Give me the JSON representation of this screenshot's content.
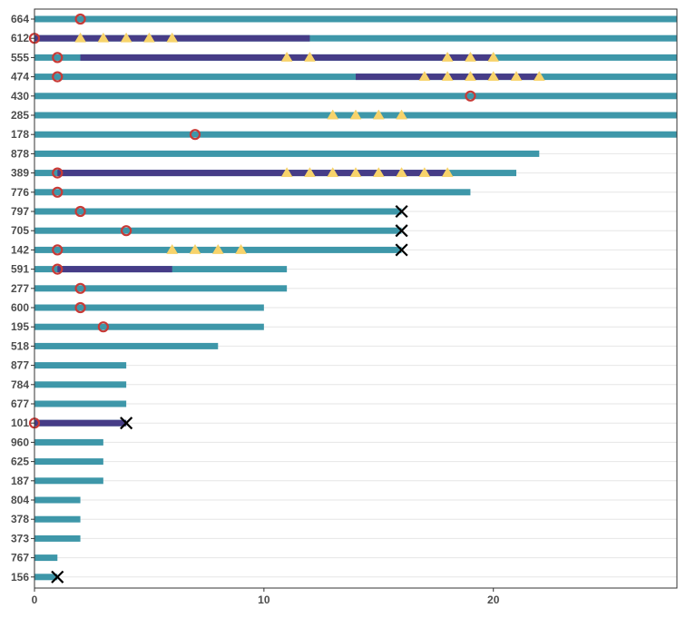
{
  "chart_data": {
    "type": "swimmer",
    "title": "",
    "xlabel": "",
    "ylabel": "",
    "xlim": [
      0,
      28
    ],
    "xticks": [
      0,
      10,
      20
    ],
    "grid": "horizontal",
    "colors": {
      "bar": "#3e97a9",
      "overlay": "#463c87",
      "circle": "#c83a36",
      "triangle": "#f7d36b",
      "cross": "#000000",
      "grid": "#e6e6e6",
      "frame": "#333333",
      "tick_text": "#4d4d4d"
    },
    "subjects": [
      {
        "id": "664",
        "end": 28,
        "overlay": null,
        "circle": 2,
        "triangles": [],
        "cross": null
      },
      {
        "id": "612",
        "end": 28,
        "overlay": [
          0,
          12
        ],
        "circle": 0,
        "triangles": [
          2,
          3,
          4,
          5,
          6
        ],
        "cross": null
      },
      {
        "id": "555",
        "end": 28,
        "overlay": [
          2,
          20
        ],
        "circle": 1,
        "triangles": [
          11,
          12,
          18,
          19,
          20
        ],
        "cross": null
      },
      {
        "id": "474",
        "end": 28,
        "overlay": [
          14,
          22
        ],
        "circle": 1,
        "triangles": [
          17,
          18,
          19,
          20,
          21,
          22
        ],
        "cross": null
      },
      {
        "id": "430",
        "end": 28,
        "overlay": null,
        "circle": 19,
        "triangles": [],
        "cross": null
      },
      {
        "id": "285",
        "end": 28,
        "overlay": null,
        "circle": null,
        "triangles": [
          13,
          14,
          15,
          16
        ],
        "cross": null
      },
      {
        "id": "178",
        "end": 28,
        "overlay": null,
        "circle": 7,
        "triangles": [],
        "cross": null
      },
      {
        "id": "878",
        "end": 22,
        "overlay": null,
        "circle": null,
        "triangles": [],
        "cross": null
      },
      {
        "id": "389",
        "end": 21,
        "overlay": [
          1,
          18
        ],
        "circle": 1,
        "triangles": [
          11,
          12,
          13,
          14,
          15,
          16,
          17,
          18
        ],
        "cross": null
      },
      {
        "id": "776",
        "end": 19,
        "overlay": null,
        "circle": 1,
        "triangles": [],
        "cross": null
      },
      {
        "id": "797",
        "end": 16,
        "overlay": null,
        "circle": 2,
        "triangles": [],
        "cross": 16
      },
      {
        "id": "705",
        "end": 16,
        "overlay": null,
        "circle": 4,
        "triangles": [],
        "cross": 16
      },
      {
        "id": "142",
        "end": 16,
        "overlay": null,
        "circle": 1,
        "triangles": [
          6,
          7,
          8,
          9
        ],
        "cross": 16
      },
      {
        "id": "591",
        "end": 11,
        "overlay": [
          1,
          6
        ],
        "circle": 1,
        "triangles": [],
        "cross": null
      },
      {
        "id": "277",
        "end": 11,
        "overlay": null,
        "circle": 2,
        "triangles": [],
        "cross": null
      },
      {
        "id": "600",
        "end": 10,
        "overlay": null,
        "circle": 2,
        "triangles": [],
        "cross": null
      },
      {
        "id": "195",
        "end": 10,
        "overlay": null,
        "circle": 3,
        "triangles": [],
        "cross": null
      },
      {
        "id": "518",
        "end": 8,
        "overlay": null,
        "circle": null,
        "triangles": [],
        "cross": null
      },
      {
        "id": "877",
        "end": 4,
        "overlay": null,
        "circle": null,
        "triangles": [],
        "cross": null
      },
      {
        "id": "784",
        "end": 4,
        "overlay": null,
        "circle": null,
        "triangles": [],
        "cross": null
      },
      {
        "id": "677",
        "end": 4,
        "overlay": null,
        "circle": null,
        "triangles": [],
        "cross": null
      },
      {
        "id": "101",
        "end": 4,
        "overlay": [
          0,
          4
        ],
        "circle": 0,
        "triangles": [],
        "cross": 4
      },
      {
        "id": "960",
        "end": 3,
        "overlay": null,
        "circle": null,
        "triangles": [],
        "cross": null
      },
      {
        "id": "625",
        "end": 3,
        "overlay": null,
        "circle": null,
        "triangles": [],
        "cross": null
      },
      {
        "id": "187",
        "end": 3,
        "overlay": null,
        "circle": null,
        "triangles": [],
        "cross": null
      },
      {
        "id": "804",
        "end": 2,
        "overlay": null,
        "circle": null,
        "triangles": [],
        "cross": null
      },
      {
        "id": "378",
        "end": 2,
        "overlay": null,
        "circle": null,
        "triangles": [],
        "cross": null
      },
      {
        "id": "373",
        "end": 2,
        "overlay": null,
        "circle": null,
        "triangles": [],
        "cross": null
      },
      {
        "id": "767",
        "end": 1,
        "overlay": null,
        "circle": null,
        "triangles": [],
        "cross": null
      },
      {
        "id": "156",
        "end": 1,
        "overlay": null,
        "circle": null,
        "triangles": [],
        "cross": 1
      }
    ]
  }
}
